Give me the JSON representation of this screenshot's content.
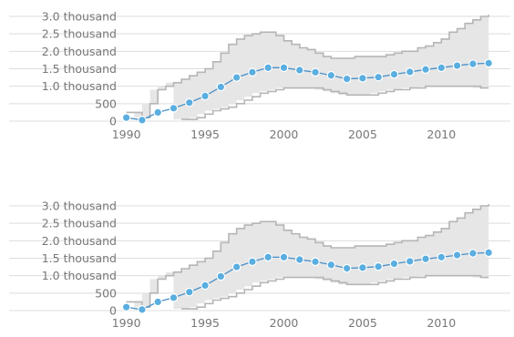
{
  "chart_data": [
    {
      "type": "line",
      "band": {
        "type": "area",
        "x": [
          1990,
          1990.5,
          1991,
          1991.5,
          1992,
          1992.5,
          1993,
          1993.5,
          1994,
          1994.5,
          1995,
          1995.5,
          1996,
          1996.5,
          1997,
          1997.5,
          1998,
          1998.5,
          1999,
          1999.5,
          2000,
          2000.5,
          2001,
          2001.5,
          2002,
          2002.5,
          2003,
          2003.5,
          2004,
          2004.5,
          2005,
          2005.5,
          2006,
          2006.5,
          2007,
          2007.5,
          2008,
          2008.5,
          2009,
          2009.5,
          2010,
          2010.5,
          2011,
          2011.5,
          2012,
          2012.5,
          2013
        ],
        "upper": [
          250,
          250,
          100,
          500,
          900,
          1000,
          1100,
          1200,
          1300,
          1400,
          1500,
          1700,
          1950,
          2200,
          2350,
          2450,
          2500,
          2550,
          2550,
          2450,
          2300,
          2200,
          2100,
          2050,
          1950,
          1850,
          1800,
          1800,
          1800,
          1850,
          1850,
          1850,
          1850,
          1900,
          1950,
          2000,
          2000,
          2100,
          2150,
          2250,
          2350,
          2550,
          2650,
          2800,
          2900,
          3000,
          3050
        ],
        "lower": [
          null,
          null,
          null,
          null,
          null,
          null,
          null,
          50,
          50,
          100,
          200,
          300,
          350,
          400,
          500,
          600,
          700,
          800,
          850,
          900,
          950,
          950,
          950,
          950,
          950,
          900,
          850,
          800,
          750,
          750,
          750,
          750,
          800,
          850,
          900,
          900,
          950,
          950,
          1000,
          1000,
          1000,
          1000,
          1000,
          1000,
          1000,
          950,
          950
        ]
      },
      "series": [
        {
          "x": [
            1990,
            1991,
            1992,
            1993,
            1994,
            1995,
            1996,
            1997,
            1998,
            1999,
            2000,
            2001,
            2002,
            2003,
            2004,
            2005,
            2006,
            2007,
            2008,
            2009,
            2010,
            2011,
            2012,
            2013
          ],
          "values": [
            100,
            30,
            250,
            370,
            530,
            720,
            980,
            1250,
            1400,
            1530,
            1530,
            1460,
            1400,
            1310,
            1210,
            1230,
            1260,
            1340,
            1410,
            1480,
            1530,
            1590,
            1640,
            1660
          ]
        }
      ],
      "x_ticks": [
        "1990",
        "1995",
        "2000",
        "2005",
        "2010"
      ],
      "y_ticks": [
        "0",
        "500",
        "1.0 thousand",
        "1.5 thousand",
        "2.0 thousand",
        "2.5 thousand",
        "3.0 thousand"
      ],
      "ylim": [
        0,
        3000
      ],
      "xlim": [
        1989.5,
        2013.8
      ],
      "grid": true
    },
    {
      "type": "line",
      "band": {
        "type": "area",
        "x": [
          1990,
          1990.5,
          1991,
          1991.5,
          1992,
          1992.5,
          1993,
          1993.5,
          1994,
          1994.5,
          1995,
          1995.5,
          1996,
          1996.5,
          1997,
          1997.5,
          1998,
          1998.5,
          1999,
          1999.5,
          2000,
          2000.5,
          2001,
          2001.5,
          2002,
          2002.5,
          2003,
          2003.5,
          2004,
          2004.5,
          2005,
          2005.5,
          2006,
          2006.5,
          2007,
          2007.5,
          2008,
          2008.5,
          2009,
          2009.5,
          2010,
          2010.5,
          2011,
          2011.5,
          2012,
          2012.5,
          2013
        ],
        "upper": [
          250,
          250,
          100,
          500,
          900,
          1000,
          1100,
          1200,
          1300,
          1400,
          1500,
          1700,
          1950,
          2200,
          2350,
          2450,
          2500,
          2550,
          2550,
          2450,
          2300,
          2200,
          2100,
          2050,
          1950,
          1850,
          1800,
          1800,
          1800,
          1850,
          1850,
          1850,
          1850,
          1900,
          1950,
          2000,
          2000,
          2100,
          2150,
          2250,
          2350,
          2550,
          2650,
          2800,
          2900,
          3000,
          3050
        ],
        "lower": [
          null,
          null,
          null,
          null,
          null,
          null,
          null,
          50,
          50,
          100,
          200,
          300,
          350,
          400,
          500,
          600,
          700,
          800,
          850,
          900,
          950,
          950,
          950,
          950,
          950,
          900,
          850,
          800,
          750,
          750,
          750,
          750,
          800,
          850,
          900,
          900,
          950,
          950,
          1000,
          1000,
          1000,
          1000,
          1000,
          1000,
          1000,
          950,
          950
        ]
      },
      "series": [
        {
          "x": [
            1990,
            1991,
            1992,
            1993,
            1994,
            1995,
            1996,
            1997,
            1998,
            1999,
            2000,
            2001,
            2002,
            2003,
            2004,
            2005,
            2006,
            2007,
            2008,
            2009,
            2010,
            2011,
            2012,
            2013
          ],
          "values": [
            100,
            30,
            250,
            370,
            530,
            720,
            980,
            1250,
            1400,
            1530,
            1530,
            1460,
            1400,
            1310,
            1210,
            1230,
            1260,
            1340,
            1410,
            1480,
            1530,
            1590,
            1640,
            1660
          ]
        }
      ],
      "x_ticks": [
        "1990",
        "1995",
        "2000",
        "2005",
        "2010"
      ],
      "y_ticks": [
        "0",
        "500",
        "1.0 thousand",
        "1.5 thousand",
        "2.0 thousand",
        "2.5 thousand",
        "3.0 thousand"
      ],
      "ylim": [
        0,
        3000
      ],
      "xlim": [
        1989.5,
        2013.8
      ],
      "grid": true
    }
  ],
  "colors": {
    "line": "#4a90c8",
    "marker_fill": "#5aaee0",
    "marker_stroke": "#ffffff",
    "band_fill": "#e6e6e6",
    "band_edge": "#b5b5b5",
    "grid": "#dddddd",
    "tick_text": "#777777"
  }
}
